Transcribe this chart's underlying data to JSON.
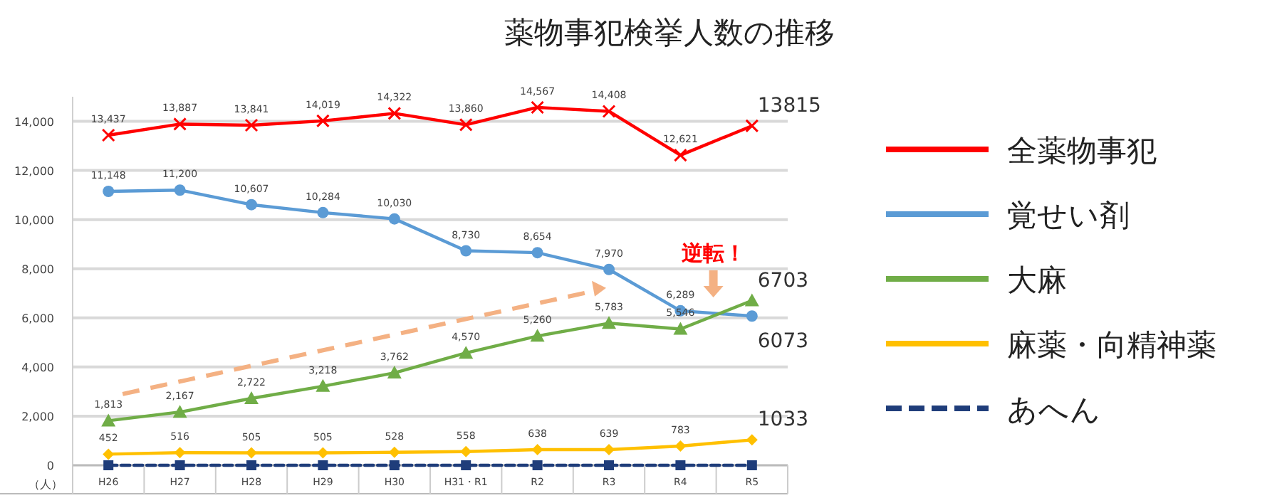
{
  "chart_data": {
    "type": "line",
    "title": "薬物事犯検挙人数の推移",
    "ylabel": "（人）",
    "categories": [
      "H26",
      "H27",
      "H28",
      "H29",
      "H30",
      "H31・R1",
      "R2",
      "R3",
      "R4",
      "R5"
    ],
    "ylim": [
      0,
      15000
    ],
    "yticks": [
      {
        "value": 0,
        "label": "0"
      },
      {
        "value": 2000,
        "label": "2,000"
      },
      {
        "value": 4000,
        "label": "4,000"
      },
      {
        "value": 6000,
        "label": "6,000"
      },
      {
        "value": 8000,
        "label": "8,000"
      },
      {
        "value": 10000,
        "label": "10,000"
      },
      {
        "value": 12000,
        "label": "12,000"
      },
      {
        "value": 14000,
        "label": "14,000"
      }
    ],
    "grid": "y",
    "legend": "right",
    "annotations": [
      "逆転！"
    ],
    "series": [
      {
        "name": "全薬物事犯",
        "color": "#ff0000",
        "marker": "cross",
        "line_style": "solid",
        "values": [
          13437,
          13887,
          13841,
          14019,
          14322,
          13860,
          14567,
          14408,
          12621,
          13815
        ],
        "value_labels": [
          "13,437",
          "13,887",
          "13,841",
          "14,019",
          "14,322",
          "13,860",
          "14,567",
          "14,408",
          "12,621",
          "13815"
        ]
      },
      {
        "name": "覚せい剤",
        "color": "#5b9bd5",
        "marker": "circle",
        "line_style": "solid",
        "values": [
          11148,
          11200,
          10607,
          10284,
          10030,
          8730,
          8654,
          7970,
          6289,
          6073
        ],
        "value_labels": [
          "11,148",
          "11,200",
          "10,607",
          "10,284",
          "10,030",
          "8,730",
          "8,654",
          "7,970",
          "6,289",
          "6073"
        ]
      },
      {
        "name": "大麻",
        "color": "#70ad47",
        "marker": "triangle",
        "line_style": "solid",
        "values": [
          1813,
          2167,
          2722,
          3218,
          3762,
          4570,
          5260,
          5783,
          5546,
          6703
        ],
        "value_labels": [
          "1,813",
          "2,167",
          "2,722",
          "3,218",
          "3,762",
          "4,570",
          "5,260",
          "5,783",
          "5,546",
          "6703"
        ]
      },
      {
        "name": "麻薬・向精神薬",
        "color": "#ffc000",
        "marker": "diamond",
        "line_style": "solid",
        "values": [
          452,
          516,
          505,
          505,
          528,
          558,
          638,
          639,
          783,
          1033
        ],
        "value_labels": [
          "452",
          "516",
          "505",
          "505",
          "528",
          "558",
          "638",
          "639",
          "783",
          "1033"
        ]
      },
      {
        "name": "あへん",
        "color": "#1f3d7a",
        "marker": "square",
        "line_style": "dashed",
        "values": [
          0,
          0,
          0,
          0,
          0,
          0,
          0,
          0,
          0,
          0
        ]
      }
    ]
  }
}
